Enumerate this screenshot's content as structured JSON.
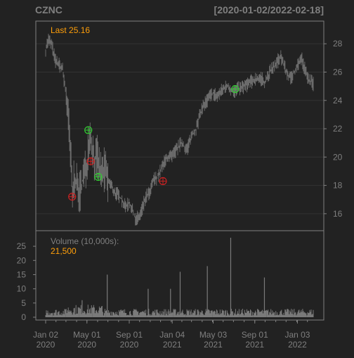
{
  "header": {
    "symbol": "CZNC",
    "date_range": "[2020-01-02/2022-02-18]"
  },
  "colors": {
    "background": "#222222",
    "frame": "#808080",
    "grid": "#333333",
    "price_bars": "#6b6b6b",
    "volume_bars": "#7a7a7a",
    "text_muted": "#7f7f7f",
    "accent": "#ff9f0a",
    "buy_marker": "#33cc33",
    "sell_marker": "#cc2222"
  },
  "chart_data": [
    {
      "type": "line",
      "title": "CZNC",
      "subtitle": "[2020-01-02/2022-02-18]",
      "annotation": "Last 25.16",
      "y_axis_side": "right",
      "ylim": [
        14.8,
        29.6
      ],
      "yticks": [
        16,
        18,
        20,
        22,
        24,
        26,
        28
      ],
      "grid": true,
      "series": [
        {
          "x": [
            "2020-01-02",
            "2020-01-10",
            "2020-01-20",
            "2020-01-30",
            "2020-02-10",
            "2020-02-20",
            "2020-03-01",
            "2020-03-10",
            "2020-03-16",
            "2020-03-20",
            "2020-03-25",
            "2020-04-01",
            "2020-04-10",
            "2020-04-20",
            "2020-05-01",
            "2020-05-08",
            "2020-05-15",
            "2020-05-22",
            "2020-06-01",
            "2020-06-08",
            "2020-06-15",
            "2020-06-22",
            "2020-07-01",
            "2020-07-10",
            "2020-07-20",
            "2020-08-01",
            "2020-08-10",
            "2020-08-20",
            "2020-09-01",
            "2020-09-10",
            "2020-09-20",
            "2020-10-01",
            "2020-10-10",
            "2020-10-20",
            "2020-11-01",
            "2020-11-10",
            "2020-11-20",
            "2020-12-01",
            "2020-12-10",
            "2020-12-20",
            "2021-01-04",
            "2021-01-15",
            "2021-02-01",
            "2021-02-15",
            "2021-03-01",
            "2021-03-15",
            "2021-04-01",
            "2021-04-15",
            "2021-05-01",
            "2021-05-15",
            "2021-06-01",
            "2021-06-15",
            "2021-07-01",
            "2021-07-15",
            "2021-08-01",
            "2021-08-15",
            "2021-09-01",
            "2021-09-15",
            "2021-10-01",
            "2021-10-15",
            "2021-11-01",
            "2021-11-15",
            "2021-12-01",
            "2021-12-15",
            "2022-01-03",
            "2022-01-15",
            "2022-02-01",
            "2022-02-18"
          ],
          "y": [
            27.6,
            28.3,
            27.9,
            26.8,
            26.5,
            26.2,
            24.5,
            22.0,
            19.5,
            17.0,
            18.8,
            18.0,
            17.5,
            18.5,
            19.5,
            21.8,
            21.0,
            19.8,
            20.0,
            19.0,
            18.8,
            19.2,
            18.3,
            18.0,
            17.5,
            17.3,
            17.0,
            16.5,
            16.8,
            16.2,
            15.6,
            15.8,
            16.5,
            17.2,
            17.5,
            18.4,
            18.5,
            19.0,
            19.5,
            20.0,
            20.0,
            20.5,
            21.0,
            20.5,
            21.5,
            22.0,
            23.5,
            24.0,
            24.5,
            24.3,
            24.8,
            25.0,
            24.6,
            24.8,
            25.0,
            25.2,
            25.5,
            25.6,
            25.3,
            26.0,
            26.5,
            27.2,
            26.0,
            25.5,
            26.5,
            27.0,
            25.6,
            25.16
          ]
        }
      ],
      "markers": [
        {
          "x": "2020-03-19",
          "y": 17.2,
          "kind": "sell"
        },
        {
          "x": "2020-05-05",
          "y": 21.9,
          "kind": "buy"
        },
        {
          "x": "2020-05-12",
          "y": 19.7,
          "kind": "sell"
        },
        {
          "x": "2020-06-03",
          "y": 18.6,
          "kind": "buy"
        },
        {
          "x": "2020-12-08",
          "y": 18.3,
          "kind": "sell"
        },
        {
          "x": "2021-07-06",
          "y": 24.8,
          "kind": "buy"
        }
      ]
    },
    {
      "type": "bar",
      "label": "Volume (10,000s):",
      "last_value": "21,500",
      "y_axis_side": "left",
      "ylim": [
        0,
        28
      ],
      "yticks": [
        0,
        5,
        10,
        15,
        20,
        25
      ],
      "grid": false,
      "baseline": 1.5,
      "spikes": [
        {
          "x": "2020-04-17",
          "value": 6
        },
        {
          "x": "2020-06-29",
          "value": 15
        },
        {
          "x": "2020-10-26",
          "value": 10
        },
        {
          "x": "2020-12-30",
          "value": 10
        },
        {
          "x": "2021-01-27",
          "value": 16
        },
        {
          "x": "2021-04-16",
          "value": 18
        },
        {
          "x": "2021-06-23",
          "value": 28
        },
        {
          "x": "2021-09-29",
          "value": 14
        }
      ]
    }
  ],
  "x_axis": {
    "range": [
      "2020-01-02",
      "2022-02-18"
    ],
    "ticks": [
      {
        "date": "2020-01-02",
        "top": "Jan 02",
        "bottom": "2020"
      },
      {
        "date": "2020-05-01",
        "top": "May 01",
        "bottom": "2020"
      },
      {
        "date": "2020-09-01",
        "top": "Sep 01",
        "bottom": "2020"
      },
      {
        "date": "2021-01-04",
        "top": "Jan 04",
        "bottom": "2021"
      },
      {
        "date": "2021-05-03",
        "top": "May 03",
        "bottom": "2021"
      },
      {
        "date": "2021-09-01",
        "top": "Sep 01",
        "bottom": "2021"
      },
      {
        "date": "2022-01-03",
        "top": "Jan 03",
        "bottom": "2022"
      }
    ]
  }
}
